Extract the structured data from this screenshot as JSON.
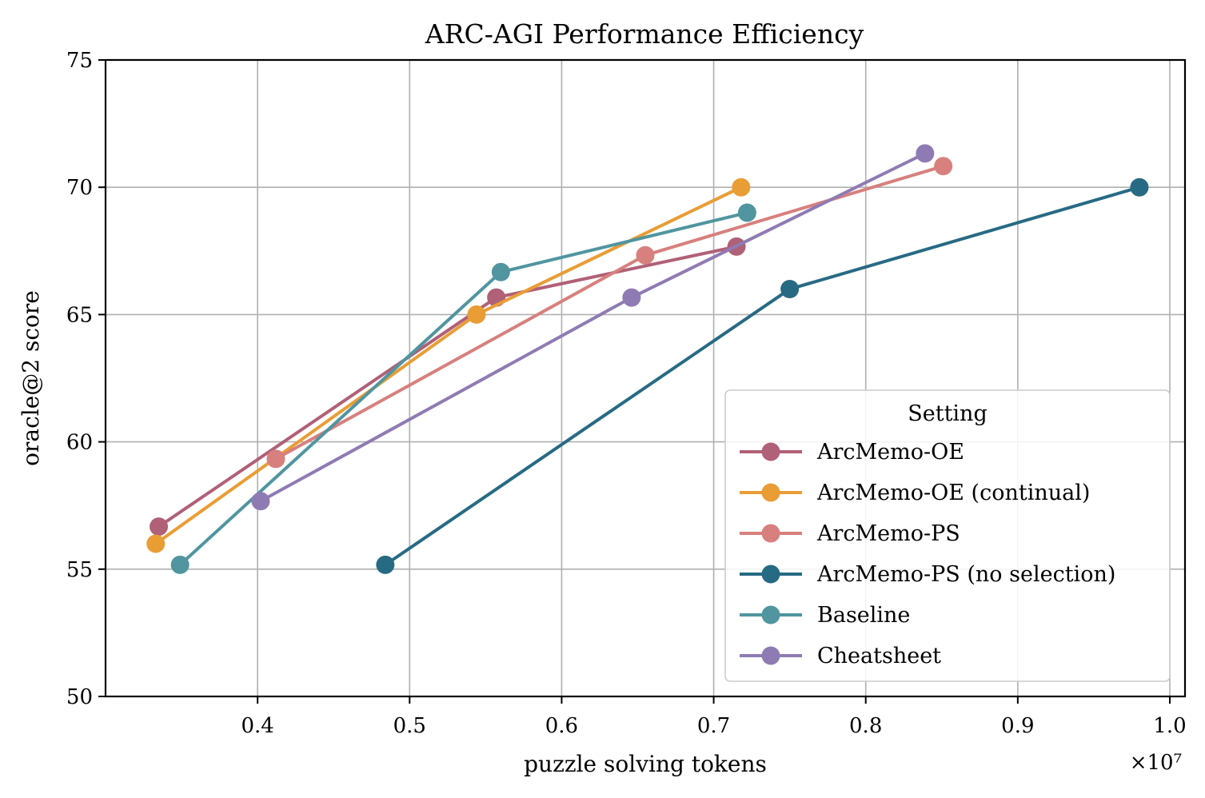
{
  "chart_data": {
    "type": "line",
    "title": "ARC-AGI Performance Efficiency",
    "xlabel": "puzzle solving tokens",
    "ylabel": "oracle@2 score",
    "x_scale_label": "×10⁷",
    "x_multiplier": 10000000,
    "xlim": [
      0.3,
      1.01
    ],
    "ylim": [
      50,
      75
    ],
    "xticks": [
      0.4,
      0.5,
      0.6,
      0.7,
      0.8,
      0.9,
      1.0
    ],
    "xtick_labels": [
      "0.4",
      "0.5",
      "0.6",
      "0.7",
      "0.8",
      "0.9",
      "1.0"
    ],
    "yticks": [
      50,
      55,
      60,
      65,
      70,
      75
    ],
    "ytick_labels": [
      "50",
      "55",
      "60",
      "65",
      "70",
      "75"
    ],
    "grid": true,
    "legend": {
      "title": "Setting",
      "position": "lower right"
    },
    "series": [
      {
        "name": "ArcMemo-OE",
        "color": "#B06077",
        "points": [
          [
            0.335,
            56.67
          ],
          [
            0.557,
            65.67
          ],
          [
            0.715,
            67.67
          ]
        ]
      },
      {
        "name": "ArcMemo-OE (continual)",
        "color": "#E99D35",
        "points": [
          [
            0.333,
            56.0
          ],
          [
            0.544,
            65.0
          ],
          [
            0.718,
            70.0
          ]
        ]
      },
      {
        "name": "ArcMemo-PS",
        "color": "#D7807D",
        "points": [
          [
            0.412,
            59.33
          ],
          [
            0.655,
            67.33
          ],
          [
            0.851,
            70.83
          ]
        ]
      },
      {
        "name": "ArcMemo-PS (no selection)",
        "color": "#276A83",
        "points": [
          [
            0.484,
            55.17
          ],
          [
            0.75,
            66.0
          ],
          [
            0.98,
            70.0
          ]
        ]
      },
      {
        "name": "Baseline",
        "color": "#5095A0",
        "points": [
          [
            0.349,
            55.17
          ],
          [
            0.56,
            66.67
          ],
          [
            0.722,
            69.0
          ]
        ]
      },
      {
        "name": "Cheatsheet",
        "color": "#8F7BB3",
        "points": [
          [
            0.402,
            57.67
          ],
          [
            0.646,
            65.67
          ],
          [
            0.839,
            71.33
          ]
        ]
      }
    ]
  }
}
